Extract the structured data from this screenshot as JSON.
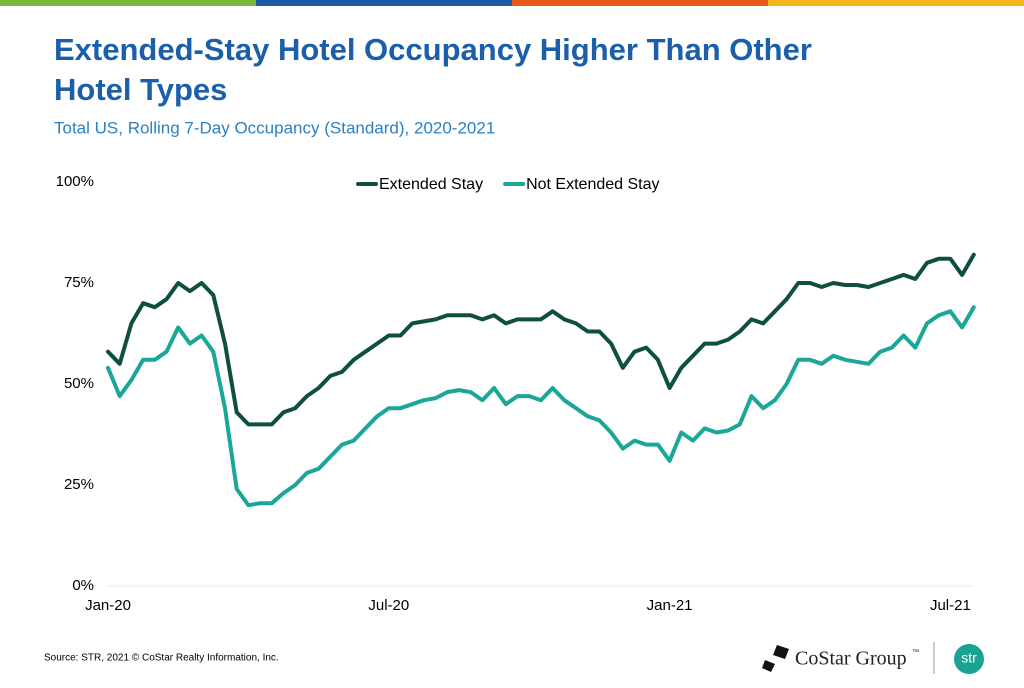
{
  "header": {
    "title_lines": [
      "Extended-Stay Hotel Occupancy Higher Than Other",
      "Hotel Types"
    ],
    "subtitle": "Total US, Rolling 7-Day Occupancy (Standard), 2020-2021"
  },
  "footer": {
    "source": "Source: STR, 2021 © CoStar Realty Information, Inc.",
    "logo": "CoStar Group",
    "logo_mark": "™",
    "logo2": "str"
  },
  "chart_data": {
    "type": "line",
    "categories": [
      "Jan-20",
      null,
      null,
      null,
      null,
      null,
      null,
      null,
      null,
      null,
      null,
      null,
      null,
      null,
      null,
      null,
      null,
      null,
      null,
      null,
      null,
      null,
      null,
      null,
      "Jul-20",
      null,
      null,
      null,
      null,
      null,
      null,
      null,
      null,
      null,
      null,
      null,
      null,
      null,
      null,
      null,
      null,
      null,
      null,
      null,
      null,
      null,
      null,
      null,
      "Jan-21",
      null,
      null,
      null,
      null,
      null,
      null,
      null,
      null,
      null,
      null,
      null,
      null,
      null,
      null,
      null,
      null,
      null,
      null,
      null,
      null,
      null,
      null,
      null,
      "Jul-21",
      null,
      null
    ],
    "series": [
      {
        "name": "Extended Stay",
        "color": "#0e4f42",
        "values": [
          58,
          55,
          65,
          70,
          69,
          71,
          75,
          73,
          75,
          72,
          60,
          43,
          40,
          40,
          40,
          43,
          44,
          47,
          49,
          52,
          53,
          56,
          58,
          60,
          62,
          62,
          65,
          65.5,
          66,
          67,
          67,
          67,
          66,
          67,
          65,
          66,
          66,
          66,
          68,
          66,
          65,
          63,
          63,
          60,
          54,
          58,
          59,
          56,
          49,
          54,
          57,
          60,
          60,
          61,
          63,
          66,
          65,
          68,
          71,
          75,
          75,
          74,
          75,
          74.5,
          74.5,
          74,
          75,
          76,
          77,
          76,
          80,
          81,
          81,
          77,
          82
        ]
      },
      {
        "name": "Not Extended Stay",
        "color": "#1ba797",
        "values": [
          54,
          47,
          51,
          56,
          56,
          58,
          64,
          60,
          62,
          58,
          44,
          24,
          20,
          20.5,
          20.5,
          23,
          25,
          28,
          29,
          32,
          35,
          36,
          39,
          42,
          44,
          44,
          45,
          46,
          46.5,
          48,
          48.5,
          48,
          46,
          49,
          45,
          47,
          47,
          46,
          49,
          46,
          44,
          42,
          41,
          38,
          34,
          36,
          35,
          35,
          31,
          38,
          36,
          39,
          38,
          38.5,
          40,
          47,
          44,
          46,
          50,
          56,
          56,
          55,
          57,
          56,
          55.5,
          55,
          58,
          59,
          62,
          59,
          65,
          67,
          68,
          64,
          69
        ]
      }
    ],
    "ylim": [
      0,
      100
    ],
    "yticks": [
      {
        "value": 0,
        "label": "0%"
      },
      {
        "value": 25,
        "label": "25%"
      },
      {
        "value": 50,
        "label": "50%"
      },
      {
        "value": 75,
        "label": "75%"
      },
      {
        "value": 100,
        "label": "100%"
      }
    ],
    "grid": false,
    "legend": "top"
  }
}
